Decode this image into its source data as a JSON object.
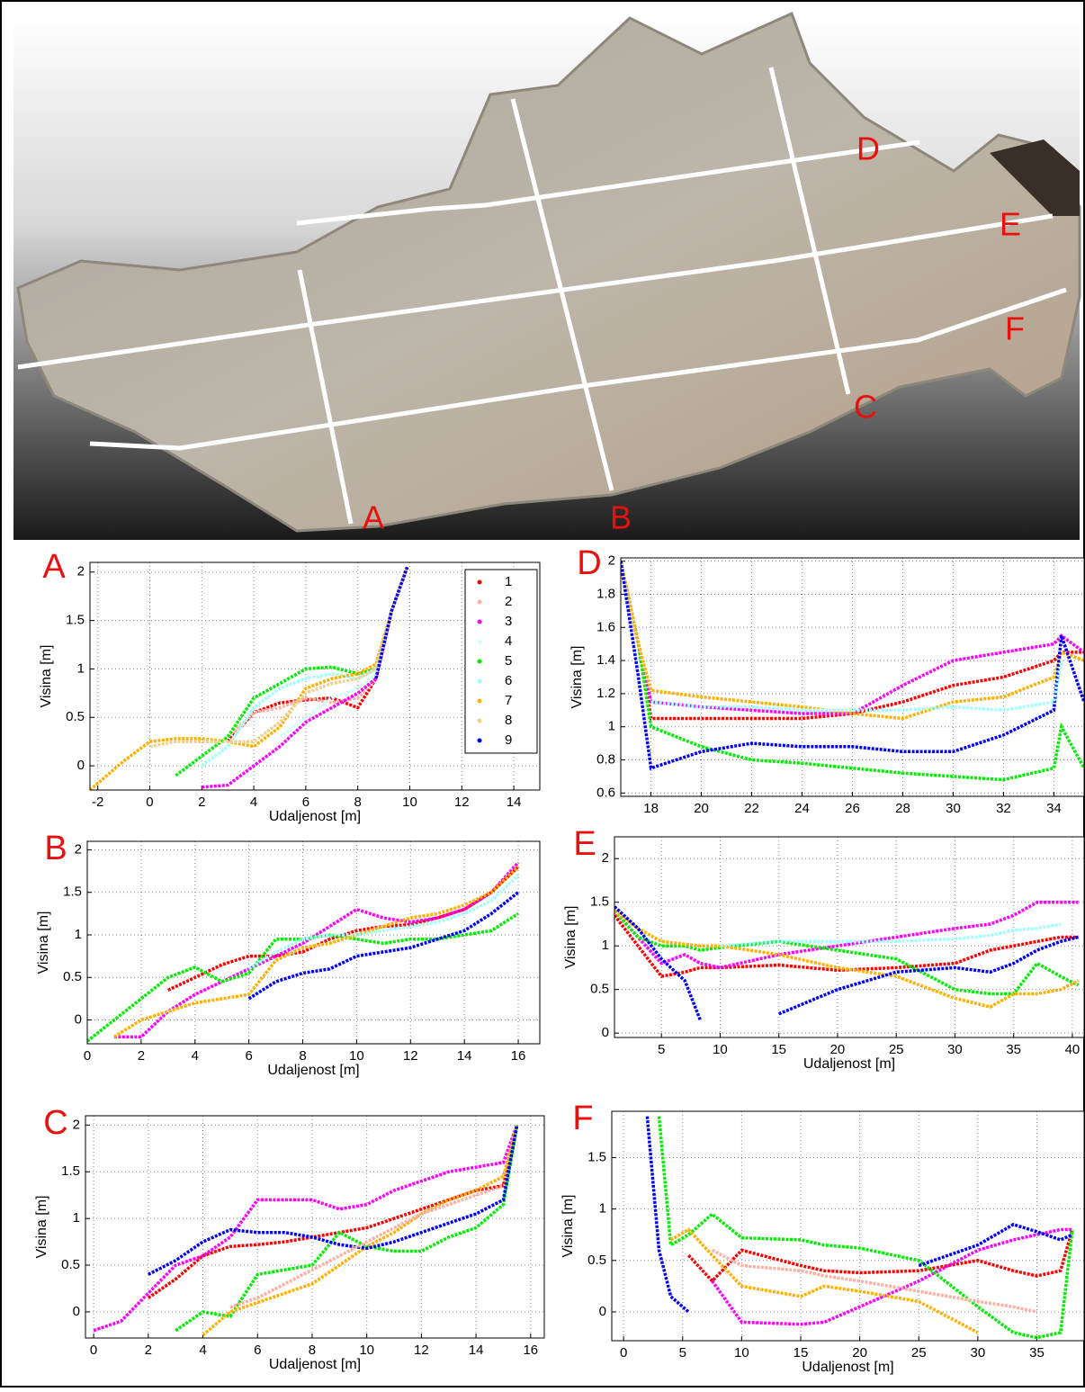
{
  "photo_labels": [
    "A",
    "B",
    "C",
    "D",
    "E",
    "F"
  ],
  "chart_data": [
    {
      "type": "line",
      "title": "A",
      "xlabel": "Udaljenost [m]",
      "ylabel": "Visina [m]",
      "grid": true,
      "legend": "upper right",
      "xlim": [
        -2.3,
        15
      ],
      "ylim": [
        -0.25,
        2.1
      ],
      "xticks": [
        -2,
        0,
        2,
        4,
        6,
        8,
        10,
        12,
        14
      ],
      "yticks": [
        0,
        0.5,
        1,
        1.5,
        2
      ],
      "x": [
        -2.3,
        -1,
        0,
        1,
        2,
        3,
        4,
        5,
        6,
        7,
        8,
        8.7,
        9.3,
        9.9
      ],
      "series": [
        {
          "name": "1",
          "color": "#ff0000",
          "values": [
            null,
            null,
            null,
            null,
            null,
            0.25,
            0.55,
            0.65,
            0.68,
            0.7,
            0.6,
            0.9,
            1.6,
            2.05
          ]
        },
        {
          "name": "2",
          "color": "#ffb0a0",
          "values": [
            null,
            null,
            null,
            null,
            null,
            0.3,
            0.55,
            0.6,
            0.7,
            0.65,
            0.7,
            0.9,
            1.6,
            2.05
          ]
        },
        {
          "name": "3",
          "color": "#ff00ff",
          "values": [
            null,
            null,
            null,
            null,
            -0.22,
            -0.2,
            0,
            0.2,
            0.45,
            0.6,
            0.75,
            0.9,
            1.6,
            2.05
          ]
        },
        {
          "name": "4",
          "color": "#d0ffff",
          "values": [
            null,
            null,
            null,
            null,
            null,
            null,
            null,
            0.3,
            0.5,
            0.7,
            0.8,
            0.95,
            1.6,
            2.05
          ]
        },
        {
          "name": "5",
          "color": "#00ee00",
          "values": [
            null,
            null,
            null,
            -0.1,
            0.1,
            0.3,
            0.7,
            0.85,
            1.0,
            1.02,
            0.95,
            1.0,
            1.6,
            2.05
          ]
        },
        {
          "name": "6",
          "color": "#a0ffff",
          "values": [
            null,
            null,
            null,
            null,
            0,
            0.2,
            0.6,
            0.8,
            0.9,
            0.95,
            0.9,
            1,
            1.6,
            2.05
          ]
        },
        {
          "name": "7",
          "color": "#ffb000",
          "values": [
            -0.25,
            0.05,
            0.25,
            0.28,
            0.28,
            0.25,
            0.2,
            0.4,
            0.8,
            0.9,
            0.95,
            1.05,
            1.6,
            2.05
          ]
        },
        {
          "name": "8",
          "color": "#f0d090",
          "values": [
            null,
            null,
            0.2,
            0.25,
            0.25,
            0.25,
            0.25,
            0.45,
            0.75,
            0.85,
            0.9,
            1.0,
            1.6,
            2.05
          ]
        },
        {
          "name": "9",
          "color": "#0000ff",
          "values": [
            null,
            null,
            null,
            null,
            null,
            null,
            null,
            null,
            null,
            null,
            null,
            0.9,
            1.6,
            2.05
          ]
        }
      ]
    },
    {
      "type": "line",
      "title": "D",
      "ylabel": "Visina [m]",
      "grid": true,
      "xlim": [
        16.8,
        35.2
      ],
      "ylim": [
        0.58,
        2.02
      ],
      "xticks": [
        18,
        20,
        22,
        24,
        26,
        28,
        30,
        32,
        34
      ],
      "yticks": [
        0.6,
        0.8,
        1,
        1.2,
        1.4,
        1.6,
        1.8,
        2
      ],
      "x": [
        16.8,
        17.5,
        18,
        20,
        22,
        24,
        26,
        28,
        30,
        32,
        34,
        34.3,
        35.2
      ],
      "series": [
        {
          "color": "#ff0000",
          "values": [
            2.0,
            1.5,
            1.05,
            1.05,
            1.05,
            1.05,
            1.08,
            1.15,
            1.25,
            1.3,
            1.4,
            1.45,
            1.45
          ]
        },
        {
          "color": "#ff00ff",
          "values": [
            2.0,
            1.5,
            1.15,
            1.12,
            1.1,
            1.08,
            1.08,
            1.25,
            1.4,
            1.45,
            1.5,
            1.55,
            1.45
          ]
        },
        {
          "color": "#00ee00",
          "values": [
            2.0,
            1.5,
            1.0,
            0.88,
            0.8,
            0.78,
            0.75,
            0.72,
            0.7,
            0.68,
            0.75,
            1.0,
            0.75
          ]
        },
        {
          "color": "#ffb000",
          "values": [
            2.0,
            1.5,
            1.22,
            1.18,
            1.15,
            1.12,
            1.08,
            1.05,
            1.15,
            1.18,
            1.3,
            1.45,
            1.4
          ]
        },
        {
          "color": "#0000ff",
          "values": [
            2.0,
            1.3,
            0.75,
            0.85,
            0.9,
            0.88,
            0.88,
            0.85,
            0.85,
            0.95,
            1.1,
            1.55,
            1.15
          ]
        },
        {
          "color": "#a0ffff",
          "values": [
            null,
            null,
            1.15,
            1.12,
            1.12,
            1.1,
            1.1,
            1.1,
            1.12,
            1.1,
            1.15,
            1.4,
            null
          ]
        }
      ]
    },
    {
      "type": "line",
      "title": "B",
      "xlabel": "Udaljenost [m]",
      "ylabel": "Visina [m]",
      "grid": true,
      "xlim": [
        0,
        16.8
      ],
      "ylim": [
        -0.28,
        2.1
      ],
      "xticks": [
        0,
        2,
        4,
        6,
        8,
        10,
        12,
        14,
        16
      ],
      "yticks": [
        0,
        0.5,
        1,
        1.5,
        2
      ],
      "x": [
        0,
        1,
        2,
        3,
        4,
        5,
        6,
        7,
        8,
        9,
        10,
        11,
        12,
        13,
        14,
        15,
        16
      ],
      "series": [
        {
          "color": "#ff0000",
          "values": [
            null,
            null,
            null,
            0.35,
            0.5,
            0.65,
            0.75,
            0.75,
            0.8,
            0.95,
            1.05,
            1.1,
            1.12,
            1.2,
            1.3,
            1.5,
            1.8
          ]
        },
        {
          "color": "#ff00ff",
          "values": [
            null,
            -0.2,
            -0.2,
            0.1,
            0.3,
            0.45,
            0.6,
            0.75,
            0.9,
            1.1,
            1.3,
            1.2,
            1.15,
            1.2,
            1.3,
            1.5,
            1.85
          ]
        },
        {
          "color": "#00ee00",
          "values": [
            -0.25,
            0.0,
            0.25,
            0.5,
            0.62,
            0.45,
            0.55,
            0.95,
            0.95,
            1.0,
            0.95,
            0.9,
            0.95,
            0.95,
            1.0,
            1.05,
            1.25
          ]
        },
        {
          "color": "#ffb000",
          "values": [
            null,
            -0.2,
            0.0,
            0.1,
            0.2,
            0.25,
            0.3,
            0.7,
            0.85,
            0.9,
            1.0,
            1.1,
            1.2,
            1.25,
            1.35,
            1.5,
            1.8
          ]
        },
        {
          "color": "#0000ff",
          "values": [
            null,
            null,
            null,
            null,
            null,
            null,
            0.25,
            0.45,
            0.55,
            0.6,
            0.75,
            0.8,
            0.85,
            0.95,
            1.05,
            1.25,
            1.5
          ]
        },
        {
          "color": "#a0ffff",
          "values": [
            null,
            null,
            null,
            null,
            null,
            null,
            0.6,
            0.8,
            0.95,
            1.0,
            1.0,
            1.05,
            1.1,
            1.15,
            1.25,
            1.4,
            1.7
          ]
        }
      ]
    },
    {
      "type": "line",
      "title": "E",
      "xlabel": "Udaljenost [m]",
      "ylabel": "Visina [m]",
      "grid": true,
      "xlim": [
        1,
        41
      ],
      "ylim": [
        -0.05,
        2.25
      ],
      "xticks": [
        5,
        10,
        15,
        20,
        25,
        30,
        35,
        40
      ],
      "yticks": [
        0,
        0.5,
        1,
        1.5,
        2
      ],
      "x": [
        1,
        3,
        5,
        7,
        8.3,
        10,
        15,
        20,
        25,
        30,
        33,
        35,
        37,
        39,
        40.5
      ],
      "series": [
        {
          "color": "#ff0000",
          "values": [
            1.35,
            1.0,
            0.65,
            0.7,
            0.75,
            0.75,
            0.78,
            0.72,
            0.75,
            0.8,
            0.95,
            1.0,
            1.05,
            1.1,
            1.1
          ]
        },
        {
          "color": "#ff00ff",
          "values": [
            1.4,
            1.1,
            0.8,
            0.9,
            0.8,
            0.75,
            0.9,
            1.0,
            1.1,
            1.2,
            1.25,
            1.35,
            1.5,
            1.5,
            1.5
          ]
        },
        {
          "color": "#00ee00",
          "values": [
            1.4,
            1.1,
            1.0,
            1.0,
            0.95,
            0.98,
            1.05,
            0.95,
            0.85,
            0.5,
            0.45,
            0.45,
            0.8,
            0.65,
            0.55
          ]
        },
        {
          "color": "#ffb000",
          "values": [
            1.4,
            1.2,
            1.05,
            1.02,
            1.0,
            1.0,
            0.9,
            0.75,
            0.65,
            0.4,
            0.3,
            0.45,
            0.45,
            0.5,
            0.6
          ]
        },
        {
          "color": "#0000ff",
          "values": [
            1.45,
            1.2,
            0.85,
            0.6,
            0.15,
            null,
            0.22,
            0.5,
            0.7,
            0.75,
            0.7,
            0.8,
            0.95,
            1.05,
            1.1
          ]
        },
        {
          "color": "#a0ffff",
          "values": [
            null,
            null,
            null,
            null,
            null,
            1.0,
            1.05,
            1.05,
            1.05,
            1.08,
            1.12,
            1.18,
            1.2,
            1.25,
            null
          ]
        }
      ]
    },
    {
      "type": "line",
      "title": "C",
      "xlabel": "Udaljenost [m]",
      "ylabel": "Visina [m]",
      "grid": true,
      "xlim": [
        -0.3,
        16.5
      ],
      "ylim": [
        -0.28,
        2.1
      ],
      "xticks": [
        0,
        2,
        4,
        6,
        8,
        10,
        12,
        14,
        16
      ],
      "yticks": [
        0,
        0.5,
        1,
        1.5,
        2
      ],
      "x": [
        0,
        1,
        2,
        3,
        4,
        5,
        6,
        7,
        8,
        9,
        10,
        11,
        12,
        13,
        14,
        15,
        15.5
      ],
      "series": [
        {
          "color": "#ff0000",
          "values": [
            null,
            null,
            0.15,
            0.35,
            0.6,
            0.7,
            0.72,
            0.75,
            0.8,
            0.85,
            0.9,
            1.0,
            1.1,
            1.2,
            1.3,
            1.35,
            2.0
          ]
        },
        {
          "color": "#ff00ff",
          "values": [
            -0.2,
            -0.1,
            0.2,
            0.5,
            0.6,
            0.8,
            1.2,
            1.2,
            1.2,
            1.1,
            1.15,
            1.3,
            1.4,
            1.5,
            1.55,
            1.6,
            2.0
          ]
        },
        {
          "color": "#00ee00",
          "values": [
            null,
            null,
            null,
            -0.2,
            0.0,
            -0.05,
            0.4,
            0.45,
            0.5,
            0.85,
            0.7,
            0.65,
            0.65,
            0.8,
            0.9,
            1.15,
            2.0
          ]
        },
        {
          "color": "#ffb000",
          "values": [
            null,
            null,
            null,
            null,
            -0.25,
            0.0,
            0.1,
            0.2,
            0.3,
            0.5,
            0.7,
            0.85,
            1.05,
            1.2,
            1.3,
            1.45,
            2.0
          ]
        },
        {
          "color": "#0000ff",
          "values": [
            null,
            null,
            0.4,
            0.55,
            0.75,
            0.88,
            0.85,
            0.85,
            0.8,
            0.72,
            0.68,
            0.75,
            0.85,
            0.95,
            1.05,
            1.2,
            2.0
          ]
        },
        {
          "color": "#ffb0a0",
          "values": [
            null,
            null,
            null,
            null,
            null,
            0.05,
            0.15,
            0.3,
            0.45,
            0.6,
            0.75,
            0.9,
            1.05,
            1.15,
            1.25,
            1.35,
            null
          ]
        }
      ]
    },
    {
      "type": "line",
      "title": "F",
      "xlabel": "Udaljenost [m]",
      "ylabel": "Visina [m]",
      "grid": true,
      "xlim": [
        -1,
        39
      ],
      "ylim": [
        -0.28,
        1.95
      ],
      "xticks": [
        0,
        5,
        10,
        15,
        20,
        25,
        30,
        35
      ],
      "yticks": [
        0,
        0.5,
        1,
        1.5
      ],
      "x": [
        2,
        3,
        4,
        5.5,
        7.5,
        10,
        15,
        17,
        20,
        25,
        30,
        33,
        35,
        37,
        38
      ],
      "series": [
        {
          "color": "#ff0000",
          "values": [
            null,
            null,
            null,
            0.55,
            0.3,
            0.6,
            0.45,
            0.4,
            0.38,
            0.4,
            0.5,
            0.4,
            0.35,
            0.4,
            0.8
          ]
        },
        {
          "color": "#ff00ff",
          "values": [
            null,
            null,
            null,
            null,
            0.3,
            -0.1,
            -0.12,
            -0.1,
            0.05,
            0.3,
            0.6,
            0.7,
            0.75,
            0.8,
            0.8
          ]
        },
        {
          "color": "#00ee00",
          "values": [
            null,
            1.9,
            0.65,
            0.75,
            0.95,
            0.72,
            0.7,
            0.65,
            0.62,
            0.5,
            0.05,
            -0.2,
            -0.25,
            -0.2,
            0.8
          ]
        },
        {
          "color": "#ffb000",
          "values": [
            null,
            null,
            0.7,
            0.8,
            0.55,
            0.25,
            0.15,
            0.25,
            0.2,
            0.1,
            -0.2,
            null,
            null,
            null,
            null
          ]
        },
        {
          "color": "#0000ff",
          "values": [
            1.9,
            0.6,
            0.15,
            0.0,
            null,
            null,
            null,
            null,
            null,
            0.45,
            0.65,
            0.85,
            0.78,
            0.7,
            0.75
          ]
        },
        {
          "color": "#ffb0a0",
          "values": [
            null,
            null,
            null,
            null,
            0.6,
            0.45,
            0.4,
            0.35,
            0.3,
            0.2,
            0.1,
            0.05,
            0,
            null,
            null
          ]
        }
      ]
    }
  ]
}
